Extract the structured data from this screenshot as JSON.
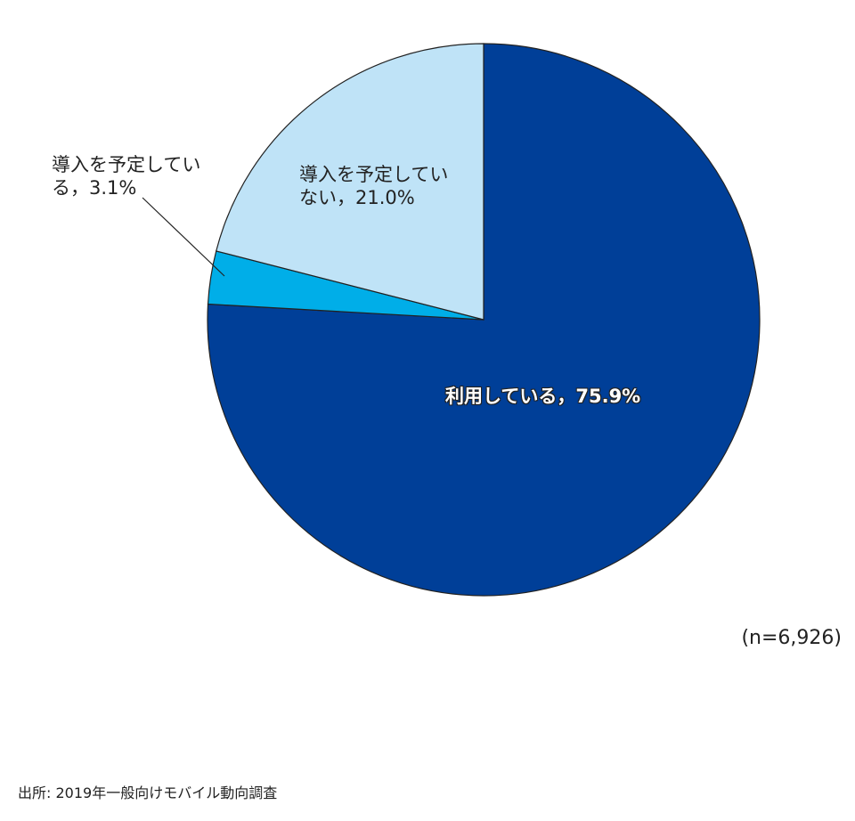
{
  "chart_data": {
    "type": "pie",
    "values": [
      75.9,
      3.1,
      21.0
    ],
    "value_labels": [
      "利用している，75.9%",
      "導入を予定している，3.1%",
      "導入を予定していない，21.0%"
    ],
    "colors": [
      "#003f98",
      "#00aee8",
      "#bfe3f7"
    ],
    "note": "(n=6,926)",
    "source": "出所: 2019年一般向けモバイル動向調査"
  }
}
